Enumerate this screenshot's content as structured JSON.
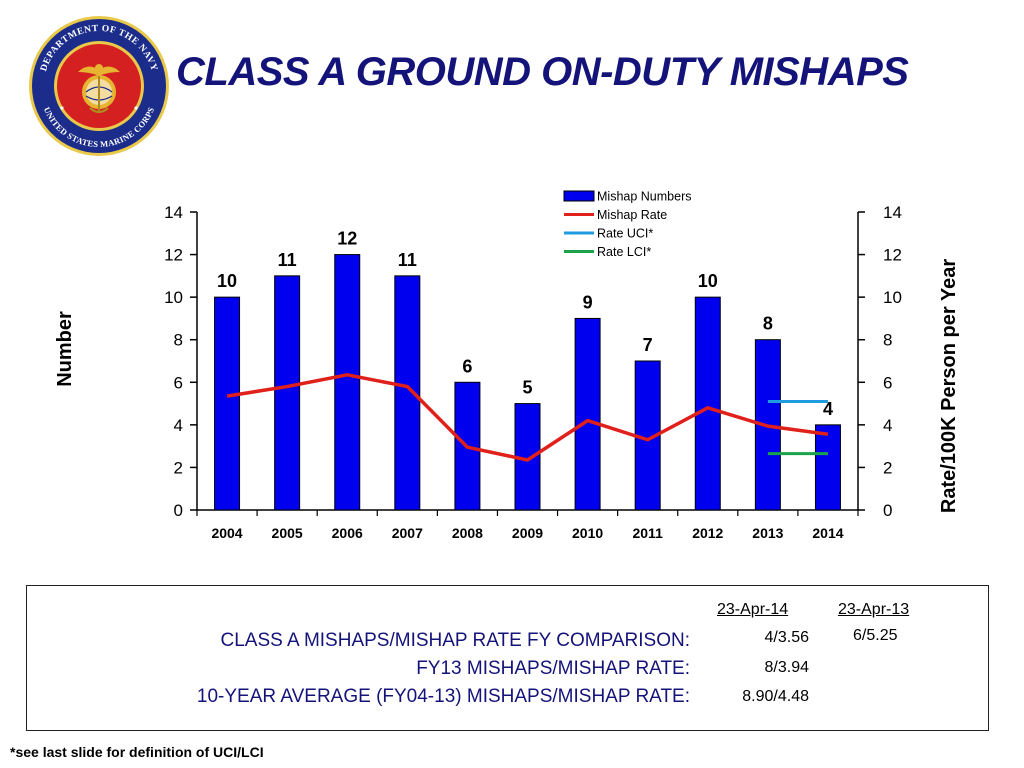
{
  "page": {
    "title": "CLASS A GROUND ON-DUTY MISHAPS",
    "footnote": "*see last slide for definition of UCI/LCI"
  },
  "seal": {
    "ring_text_top": "DEPARTMENT OF THE NAVY",
    "ring_text_bottom": "UNITED STATES MARINE CORPS",
    "icon": "usmc-seal-icon",
    "colors": {
      "ring": "#1c2c8a",
      "center": "#d42020",
      "emblem": "#e6b431"
    }
  },
  "chart_data": {
    "type": "bar",
    "categories": [
      "2004",
      "2005",
      "2006",
      "2007",
      "2008",
      "2009",
      "2010",
      "2011",
      "2012",
      "2013",
      "2014"
    ],
    "series": [
      {
        "name": "Mishap Numbers",
        "type": "bar",
        "axis": "left",
        "color": "#0000ee",
        "values": [
          10,
          11,
          12,
          11,
          6,
          5,
          9,
          7,
          10,
          8,
          4
        ]
      },
      {
        "name": "Mishap Rate",
        "type": "line",
        "axis": "right",
        "color": "#e0201a",
        "values": [
          5.35,
          5.8,
          6.35,
          5.8,
          2.95,
          2.35,
          4.2,
          3.3,
          4.8,
          3.94,
          3.56
        ]
      },
      {
        "name": "Rate UCI*",
        "type": "line",
        "axis": "right",
        "color": "#1f9ce0",
        "x_range": [
          "2013",
          "2014"
        ],
        "value": 5.1
      },
      {
        "name": "Rate LCI*",
        "type": "line",
        "axis": "right",
        "color": "#1aa34a",
        "x_range": [
          "2013",
          "2014"
        ],
        "value": 2.65
      }
    ],
    "data_labels": [
      "10",
      "11",
      "12",
      "11",
      "6",
      "5",
      "9",
      "7",
      "10",
      "8",
      "4"
    ],
    "ylabel": "Number",
    "y2label": "Rate/100K Person per Year",
    "ylim": [
      0,
      14
    ],
    "y2lim": [
      0,
      14
    ],
    "yticks": [
      "0",
      "2",
      "4",
      "6",
      "8",
      "10",
      "12",
      "14"
    ],
    "legend_position": "top-right",
    "grid": false
  },
  "comparison": {
    "columns": [
      "23-Apr-14",
      "23-Apr-13"
    ],
    "rows": [
      {
        "label": "CLASS A MISHAPS/MISHAP RATE FY COMPARISON:",
        "values": [
          "4/3.56",
          "6/5.25"
        ]
      },
      {
        "label": "FY13 MISHAPS/MISHAP RATE:",
        "values": [
          "8/3.94",
          ""
        ]
      },
      {
        "label": "10-YEAR AVERAGE (FY04-13) MISHAPS/MISHAP RATE:",
        "values": [
          "8.90/4.48",
          ""
        ]
      }
    ]
  }
}
